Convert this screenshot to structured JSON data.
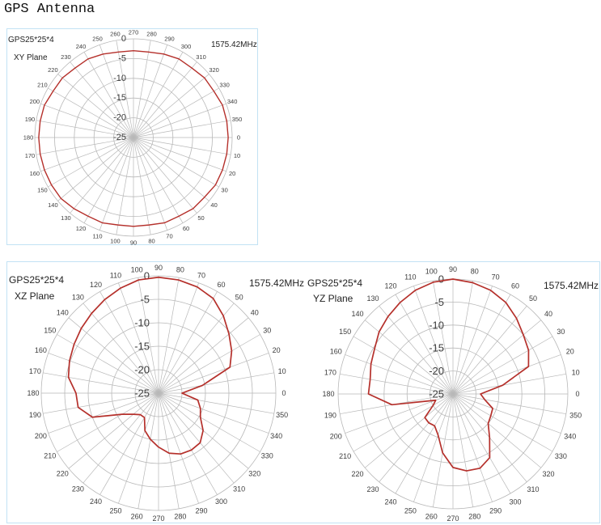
{
  "page": {
    "title": "GPS Antenna"
  },
  "colors": {
    "pattern": "#b5302b",
    "grid": "#b8b8b8",
    "frame": "#c2e2f4",
    "tick_text": "#3d3d3d",
    "text": "#222222"
  },
  "chart_data": [
    {
      "type": "line",
      "projection": "polar",
      "label_lines": [
        "GPS25*25*4",
        "XY Plane"
      ],
      "frequency": "1575.42MHz",
      "theta_zero": "right",
      "theta_direction": "clockwise",
      "r_range": [
        -25,
        0
      ],
      "r_ticks": [
        0,
        -5,
        -10,
        -15,
        -20,
        -25
      ],
      "theta": [
        0,
        10,
        20,
        30,
        40,
        50,
        60,
        70,
        80,
        90,
        100,
        110,
        120,
        130,
        140,
        150,
        160,
        170,
        180,
        190,
        200,
        210,
        220,
        230,
        240,
        250,
        260,
        270,
        280,
        290,
        300,
        310,
        320,
        330,
        340,
        350
      ],
      "series": [
        {
          "values": [
            -1,
            -1,
            -1,
            -1,
            -1.5,
            -1.5,
            -2,
            -2,
            -2.5,
            -2.5,
            -2.5,
            -2,
            -2,
            -1.5,
            -1,
            -1,
            -1,
            -1,
            -1,
            -1,
            -1,
            -1.5,
            -1.5,
            -2,
            -2,
            -2.5,
            -3,
            -3,
            -3,
            -2.5,
            -2,
            -2,
            -1.5,
            -1.5,
            -1,
            -1
          ]
        }
      ]
    },
    {
      "type": "line",
      "projection": "polar",
      "label_lines": [
        "GPS25*25*4",
        "XZ Plane"
      ],
      "frequency": "1575.42MHz",
      "theta_zero": "right",
      "theta_direction": "counterclockwise",
      "r_range": [
        -25,
        0
      ],
      "r_ticks": [
        0,
        -5,
        -10,
        -15,
        -20,
        -25
      ],
      "theta": [
        0,
        10,
        20,
        30,
        40,
        50,
        60,
        70,
        80,
        90,
        100,
        110,
        120,
        130,
        140,
        150,
        160,
        170,
        180,
        190,
        200,
        210,
        220,
        230,
        240,
        250,
        260,
        270,
        280,
        290,
        300,
        310,
        320,
        330,
        340,
        350
      ],
      "series": [
        {
          "values": [
            -20,
            -15.5,
            -8.8,
            -7,
            -5.4,
            -3.5,
            -1.7,
            -0.9,
            -0.5,
            -0.3,
            -0.5,
            -1.2,
            -2,
            -2.8,
            -3.5,
            -4.2,
            -4.8,
            -5.5,
            -7.4,
            -7.6,
            -10,
            -16,
            -18,
            -19,
            -19,
            -16.5,
            -15,
            -13.5,
            -12,
            -11.2,
            -11,
            -11.2,
            -12.6,
            -14.7,
            -15.5,
            -16.5
          ]
        }
      ]
    },
    {
      "type": "line",
      "projection": "polar",
      "label_lines": [
        "GPS25*25*4",
        "YZ Plane"
      ],
      "frequency": "1575.42MHz",
      "theta_zero": "right",
      "theta_direction": "counterclockwise",
      "r_range": [
        -25,
        0
      ],
      "r_ticks": [
        0,
        -5,
        -10,
        -15,
        -20,
        -25
      ],
      "theta": [
        0,
        10,
        20,
        30,
        40,
        50,
        60,
        70,
        80,
        90,
        100,
        110,
        120,
        130,
        140,
        150,
        160,
        170,
        180,
        190,
        200,
        210,
        220,
        230,
        240,
        250,
        260,
        270,
        280,
        290,
        300,
        310,
        320,
        330,
        340,
        350
      ],
      "series": [
        {
          "values": [
            -19,
            -14,
            -7.5,
            -6,
            -5,
            -3.5,
            -2,
            -1,
            -0.4,
            0,
            -0.3,
            -1,
            -2,
            -3,
            -4,
            -5.3,
            -6,
            -6.7,
            -6.6,
            -11.5,
            -21,
            -20,
            -17,
            -16.8,
            -17,
            -15.5,
            -12,
            -9,
            -8,
            -7.8,
            -9,
            -12.6,
            -15,
            -15.5,
            -15.8,
            -18
          ]
        }
      ]
    }
  ]
}
